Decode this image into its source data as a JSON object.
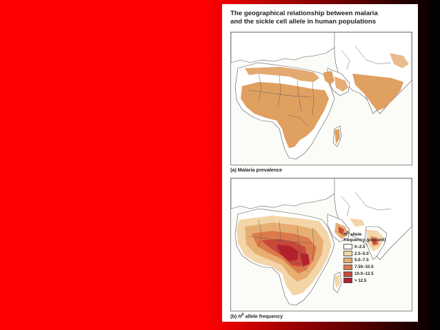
{
  "figure": {
    "title_lines": [
      "The geographical relationship between malaria",
      "and the sickle cell allele in human populations"
    ]
  },
  "map_a": {
    "caption": "(a) Malaria prevalence",
    "land_color": "#ffffff",
    "malaria_color": "#e0a060",
    "border_color": "#555555"
  },
  "map_b": {
    "caption_prefix": "(b) ",
    "caption_symbol": "H",
    "caption_superscript": "S",
    "caption_suffix": " allele frequency",
    "legend": {
      "title_symbol": "H",
      "title_superscript": "S",
      "title_line1_suffix": " allele",
      "title_line2": "frequency (percent)",
      "items": [
        {
          "label": "0–2.5",
          "color": "#ffffff"
        },
        {
          "label": "2.5–5.0",
          "color": "#f3d5a8"
        },
        {
          "label": "5.0–7.5",
          "color": "#e7ae72"
        },
        {
          "label": "7.50–10.0",
          "color": "#db7a4a"
        },
        {
          "label": "10.0–12.5",
          "color": "#c8483a"
        },
        {
          "label": "> 12.5",
          "color": "#b3202e"
        }
      ]
    }
  },
  "slide": {
    "left_color": "#ff0000",
    "right_color": "#000000"
  }
}
